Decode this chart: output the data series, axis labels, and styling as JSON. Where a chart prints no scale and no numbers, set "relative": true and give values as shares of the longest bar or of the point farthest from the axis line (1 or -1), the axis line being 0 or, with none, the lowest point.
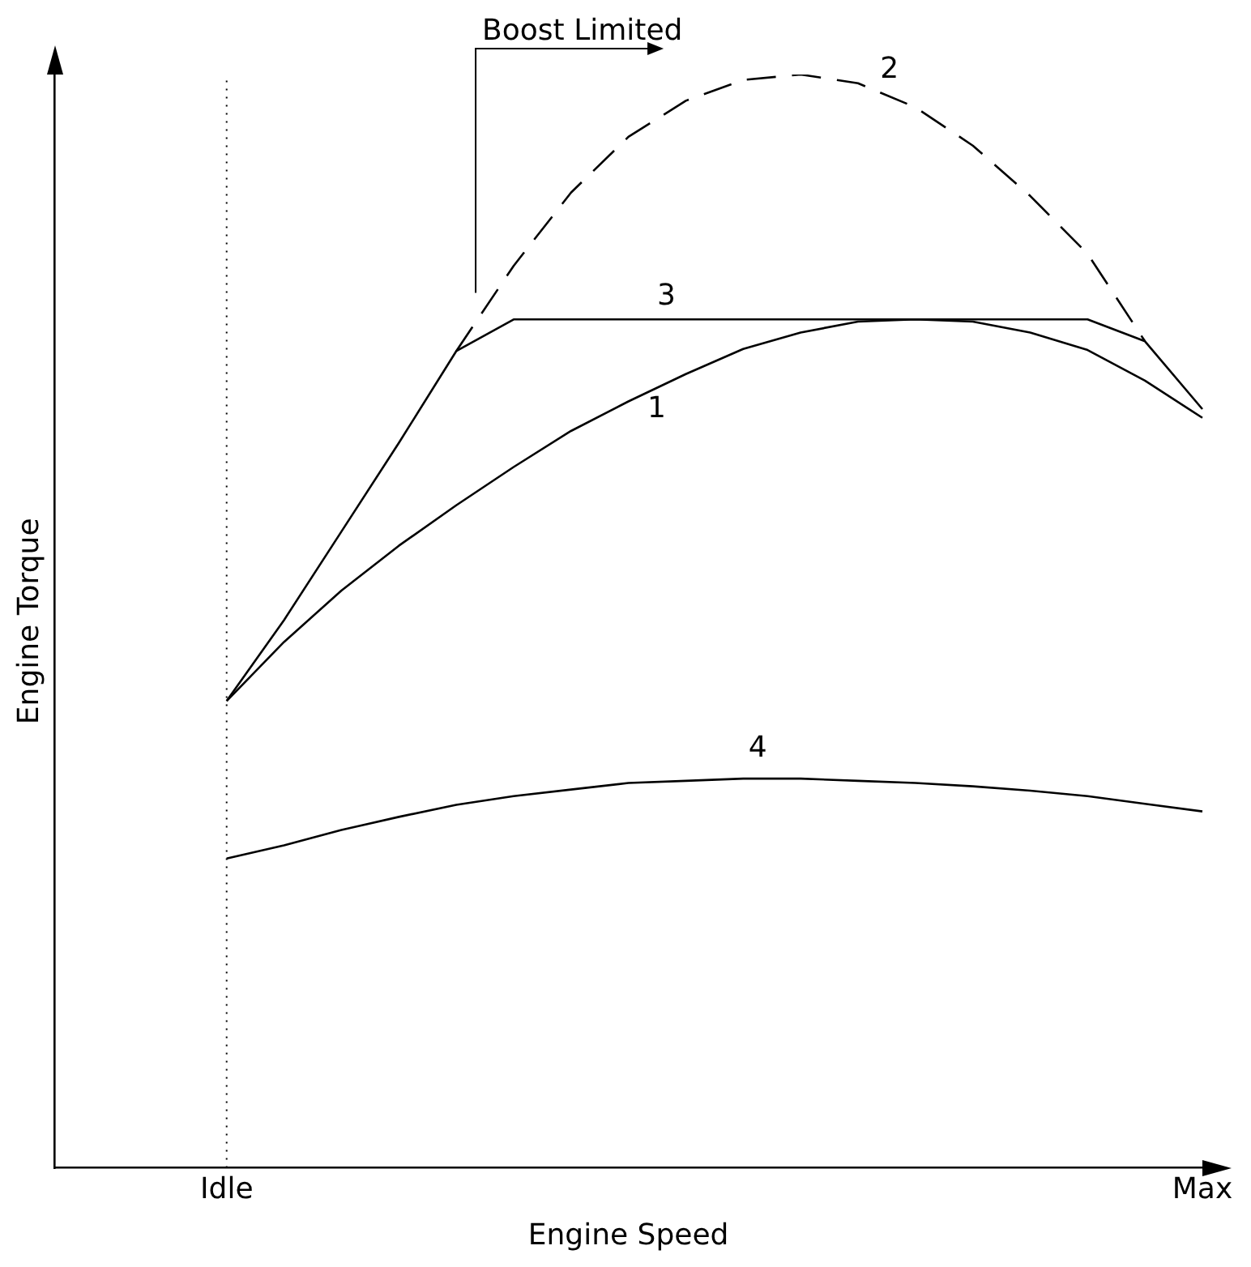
{
  "chart_data": {
    "type": "line",
    "relative": true,
    "xlabel": "Engine Speed",
    "ylabel": "Engine Torque",
    "categories": [
      null,
      null,
      null,
      "Idle",
      null,
      null,
      null,
      null,
      null,
      null,
      null,
      null,
      null,
      null,
      null,
      null,
      null,
      null,
      null,
      null,
      "Max"
    ],
    "annotations": [
      "Boost Limited"
    ],
    "ref_lines": [
      {
        "axis": "x",
        "value": "Idle",
        "color": "#000000",
        "line_style": "dotted"
      }
    ],
    "grid": false,
    "legend": false,
    "marker": "none",
    "line_style": "solid",
    "series": [
      {
        "name": "1",
        "color": "#000000",
        "values": [
          null,
          null,
          null,
          0.427,
          0.481,
          0.528,
          0.569,
          0.606,
          0.641,
          0.674,
          0.701,
          0.726,
          0.749,
          0.764,
          0.774,
          0.776,
          0.774,
          0.764,
          0.748,
          0.72,
          0.686
        ]
      },
      {
        "name": "2",
        "color": "#000000",
        "line_style": "dashed",
        "values": [
          null,
          null,
          null,
          null,
          null,
          null,
          null,
          0.747,
          0.825,
          0.892,
          0.943,
          0.976,
          0.995,
          1,
          0.992,
          0.97,
          0.935,
          0.889,
          0.836,
          0.756,
          null
        ]
      },
      {
        "name": "3",
        "color": "#000000",
        "values": [
          null,
          null,
          null,
          0.427,
          0.501,
          0.582,
          0.663,
          0.747,
          0.776,
          0.776,
          0.776,
          0.776,
          0.776,
          0.776,
          0.776,
          0.776,
          0.776,
          0.776,
          0.776,
          0.756,
          0.694
        ]
      },
      {
        "name": "4",
        "color": "#000000",
        "values": [
          null,
          null,
          null,
          0.283,
          0.295,
          0.309,
          0.321,
          0.332,
          0.34,
          0.346,
          0.352,
          0.354,
          0.356,
          0.356,
          0.354,
          0.352,
          0.349,
          0.345,
          0.34,
          0.333,
          0.326
        ]
      }
    ]
  }
}
